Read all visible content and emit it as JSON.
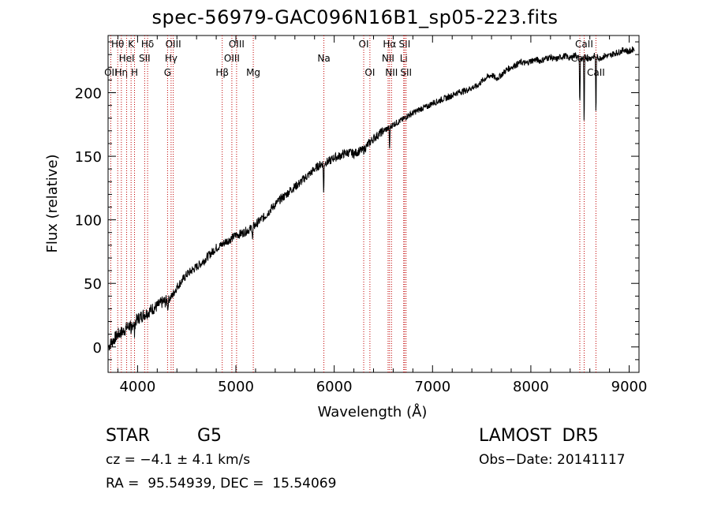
{
  "chart_data": {
    "type": "line",
    "title": "spec-56979-GAC096N16B1_sp05-223.fits",
    "xlabel": "Wavelength (Å)",
    "ylabel": "Flux (relative)",
    "xlim": [
      3700,
      9100
    ],
    "ylim": [
      -20,
      245
    ],
    "xticks": [
      4000,
      5000,
      6000,
      7000,
      8000,
      9000
    ],
    "yticks": [
      0,
      50,
      100,
      150,
      200
    ],
    "grid": false,
    "series": [
      {
        "color": "#000000",
        "points": [
          [
            3700,
            0
          ],
          [
            3750,
            5
          ],
          [
            3800,
            10
          ],
          [
            3850,
            12
          ],
          [
            3900,
            16
          ],
          [
            3950,
            18
          ],
          [
            4000,
            22
          ],
          [
            4050,
            25
          ],
          [
            4100,
            27
          ],
          [
            4150,
            30
          ],
          [
            4200,
            32
          ],
          [
            4250,
            35
          ],
          [
            4300,
            36
          ],
          [
            4350,
            40
          ],
          [
            4400,
            47
          ],
          [
            4450,
            52
          ],
          [
            4500,
            57
          ],
          [
            4550,
            60
          ],
          [
            4600,
            63
          ],
          [
            4650,
            66
          ],
          [
            4700,
            70
          ],
          [
            4750,
            74
          ],
          [
            4800,
            78
          ],
          [
            4850,
            80
          ],
          [
            4900,
            83
          ],
          [
            4950,
            85
          ],
          [
            5000,
            88
          ],
          [
            5050,
            89
          ],
          [
            5100,
            91
          ],
          [
            5150,
            93
          ],
          [
            5200,
            96
          ],
          [
            5250,
            100
          ],
          [
            5300,
            103
          ],
          [
            5350,
            108
          ],
          [
            5400,
            112
          ],
          [
            5450,
            116
          ],
          [
            5500,
            119
          ],
          [
            5550,
            123
          ],
          [
            5600,
            126
          ],
          [
            5650,
            129
          ],
          [
            5700,
            133
          ],
          [
            5750,
            136
          ],
          [
            5800,
            140
          ],
          [
            5850,
            143
          ],
          [
            5900,
            145
          ],
          [
            5950,
            146
          ],
          [
            6000,
            149
          ],
          [
            6050,
            150
          ],
          [
            6100,
            152
          ],
          [
            6150,
            153
          ],
          [
            6200,
            152
          ],
          [
            6250,
            154
          ],
          [
            6300,
            155
          ],
          [
            6350,
            160
          ],
          [
            6400,
            164
          ],
          [
            6450,
            167
          ],
          [
            6500,
            170
          ],
          [
            6550,
            172
          ],
          [
            6600,
            175
          ],
          [
            6650,
            177
          ],
          [
            6700,
            179
          ],
          [
            6750,
            182
          ],
          [
            6800,
            184
          ],
          [
            6850,
            186
          ],
          [
            6900,
            188
          ],
          [
            6950,
            189
          ],
          [
            7000,
            192
          ],
          [
            7050,
            193
          ],
          [
            7100,
            195
          ],
          [
            7150,
            196
          ],
          [
            7200,
            198
          ],
          [
            7250,
            200
          ],
          [
            7300,
            201
          ],
          [
            7350,
            202
          ],
          [
            7400,
            204
          ],
          [
            7450,
            205
          ],
          [
            7500,
            209
          ],
          [
            7550,
            212
          ],
          [
            7600,
            214
          ],
          [
            7650,
            211
          ],
          [
            7700,
            214
          ],
          [
            7750,
            218
          ],
          [
            7800,
            220
          ],
          [
            7850,
            222
          ],
          [
            7900,
            224
          ],
          [
            7950,
            223
          ],
          [
            8000,
            225
          ],
          [
            8050,
            226
          ],
          [
            8100,
            225
          ],
          [
            8150,
            227
          ],
          [
            8200,
            228
          ],
          [
            8250,
            226
          ],
          [
            8300,
            228
          ],
          [
            8350,
            229
          ],
          [
            8400,
            227
          ],
          [
            8450,
            230
          ],
          [
            8500,
            226
          ],
          [
            8550,
            228
          ],
          [
            8600,
            227
          ],
          [
            8650,
            229
          ],
          [
            8700,
            227
          ],
          [
            8750,
            229
          ],
          [
            8800,
            229
          ],
          [
            8850,
            231
          ],
          [
            8900,
            232
          ],
          [
            8950,
            234
          ],
          [
            9000,
            232
          ],
          [
            9050,
            235
          ]
        ]
      }
    ],
    "line_markers": [
      {
        "x": 3727,
        "label": "OII",
        "row": 2
      },
      {
        "x": 3798,
        "label": "Hθ",
        "row": 0
      },
      {
        "x": 3835,
        "label": "Hη",
        "row": 2
      },
      {
        "x": 3889,
        "label": "HeI",
        "row": 1
      },
      {
        "x": 3934,
        "label": "K",
        "row": 0
      },
      {
        "x": 3969,
        "label": "H",
        "row": 2
      },
      {
        "x": 4072,
        "label": "SII",
        "row": 1
      },
      {
        "x": 4102,
        "label": "Hδ",
        "row": 0
      },
      {
        "x": 4305,
        "label": "G",
        "row": 2
      },
      {
        "x": 4341,
        "label": "Hγ",
        "row": 1
      },
      {
        "x": 4363,
        "label": "OIII",
        "row": 0
      },
      {
        "x": 4861,
        "label": "Hβ",
        "row": 2
      },
      {
        "x": 4959,
        "label": "OIII",
        "row": 1
      },
      {
        "x": 5007,
        "label": "OIII",
        "row": 0
      },
      {
        "x": 5177,
        "label": "Mg",
        "row": 2
      },
      {
        "x": 5895,
        "label": "Na",
        "row": 1
      },
      {
        "x": 6300,
        "label": "OI",
        "row": 0
      },
      {
        "x": 6363,
        "label": "OI",
        "row": 2
      },
      {
        "x": 6548,
        "label": "NII",
        "row": 1
      },
      {
        "x": 6563,
        "label": "Hα",
        "row": 0
      },
      {
        "x": 6583,
        "label": "NII",
        "row": 2
      },
      {
        "x": 6707,
        "label": "Li",
        "row": 1
      },
      {
        "x": 6716,
        "label": "SII",
        "row": 0
      },
      {
        "x": 6731,
        "label": "SII",
        "row": 2
      },
      {
        "x": 8498,
        "label": "CaII",
        "row": 1
      },
      {
        "x": 8542,
        "label": "CaII",
        "row": 0
      },
      {
        "x": 8662,
        "label": "CaII",
        "row": 2
      }
    ]
  },
  "info": {
    "class": "STAR",
    "subclass": "G5",
    "cz": "cz = −4.1 ± 4.1 km/s",
    "coords": "RA =  95.54939, DEC =  15.54069",
    "survey": "LAMOST  DR5",
    "obs_date": "Obs−Date: 20141117"
  }
}
